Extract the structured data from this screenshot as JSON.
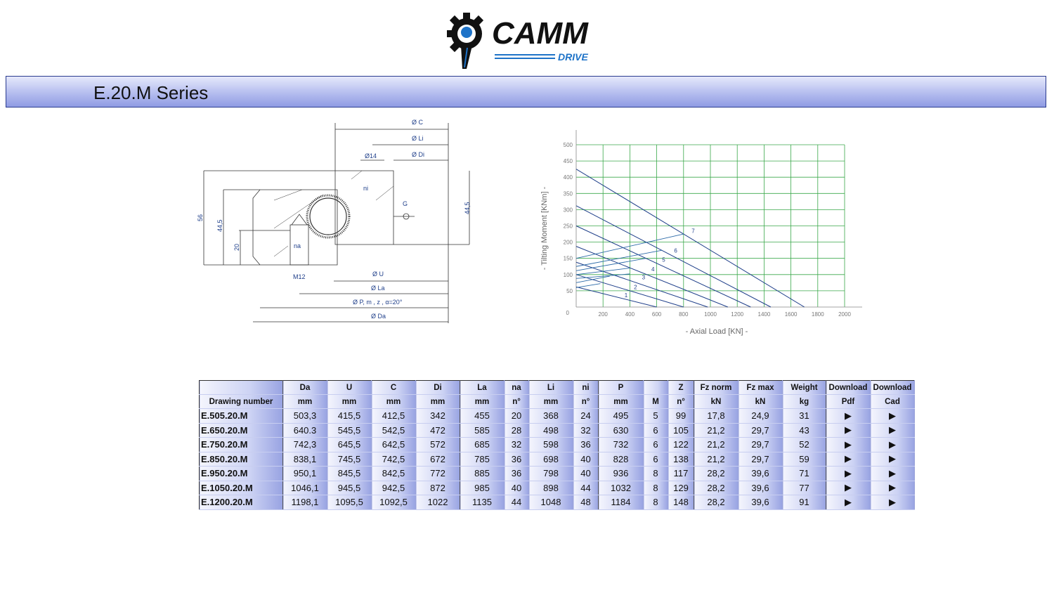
{
  "logo": {
    "text": "CAMM",
    "subtext": "DRIVE",
    "colors": {
      "dark": "#111111",
      "blue": "#1e73c8"
    }
  },
  "title": "E.20.M Series",
  "drawing": {
    "labels": {
      "C": "Ø C",
      "Li": "Ø Li",
      "Di": "Ø Di",
      "hole": "Ø14",
      "ni": "ni",
      "na": "na",
      "G": "G",
      "h56": "56",
      "h445": "44,5",
      "h20": "20",
      "h445r": "44,5",
      "M12": "M12",
      "U": "Ø U",
      "La": "Ø La",
      "P": "Ø P, m , z , α=20°",
      "Da": "Ø Da"
    }
  },
  "chart_data": {
    "type": "line",
    "xlabel": "-  Axial Load  [KN]  -",
    "ylabel": "-  Tilting Moment  [KNm]  -",
    "xlim": [
      0,
      2000
    ],
    "ylim": [
      0,
      500
    ],
    "xticks": [
      200,
      400,
      600,
      800,
      1000,
      1200,
      1400,
      1600,
      1800,
      2000
    ],
    "yticks": [
      50,
      100,
      150,
      200,
      250,
      300,
      350,
      400,
      450,
      500
    ],
    "origin_label": "0",
    "grid": true,
    "grid_color": "#3aa84a",
    "line_color": "#1f3f8a",
    "series": [
      {
        "name": "1",
        "points": [
          [
            0,
            62
          ],
          [
            600,
            0
          ]
        ],
        "bolt": [
          [
            0,
            60
          ],
          [
            180,
            72
          ]
        ]
      },
      {
        "name": "2",
        "points": [
          [
            0,
            100
          ],
          [
            800,
            0
          ]
        ],
        "bolt": [
          [
            0,
            75
          ],
          [
            250,
            95
          ]
        ]
      },
      {
        "name": "3",
        "points": [
          [
            0,
            138
          ],
          [
            980,
            0
          ]
        ],
        "bolt": [
          [
            0,
            88
          ],
          [
            400,
            102
          ]
        ]
      },
      {
        "name": "4",
        "points": [
          [
            0,
            187
          ],
          [
            1130,
            0
          ]
        ],
        "bolt": [
          [
            0,
            100
          ],
          [
            400,
            120
          ]
        ]
      },
      {
        "name": "5",
        "points": [
          [
            0,
            250
          ],
          [
            1300,
            0
          ]
        ],
        "bolt": [
          [
            0,
            112
          ],
          [
            520,
            150
          ]
        ]
      },
      {
        "name": "6",
        "points": [
          [
            0,
            312
          ],
          [
            1450,
            0
          ]
        ],
        "bolt": [
          [
            0,
            125
          ],
          [
            640,
            175
          ]
        ]
      },
      {
        "name": "7",
        "points": [
          [
            0,
            425
          ],
          [
            1700,
            0
          ]
        ],
        "bolt": [
          [
            0,
            150
          ],
          [
            800,
            225
          ]
        ]
      }
    ],
    "series_label_positions_data": [
      [
        360,
        30
      ],
      [
        430,
        55
      ],
      [
        490,
        85
      ],
      [
        560,
        110
      ],
      [
        640,
        140
      ],
      [
        730,
        168
      ],
      [
        860,
        228
      ]
    ]
  },
  "table": {
    "header1": [
      "",
      "Da",
      "U",
      "C",
      "Di",
      "La",
      "na",
      "Li",
      "ni",
      "P",
      "",
      "Z",
      "Fz norm",
      "Fz max",
      "Weight",
      "Download",
      "Download"
    ],
    "header2": [
      "Drawing number",
      "mm",
      "mm",
      "mm",
      "mm",
      "mm",
      "n°",
      "mm",
      "n°",
      "mm",
      "M",
      "n°",
      "kN",
      "kN",
      "kg",
      "Pdf",
      "Cad"
    ],
    "rows": [
      [
        "E.505.20.M",
        "503,3",
        "415,5",
        "412,5",
        "342",
        "455",
        "20",
        "368",
        "24",
        "495",
        "5",
        "99",
        "17,8",
        "24,9",
        "31",
        "▶",
        "▶"
      ],
      [
        "E.650.20.M",
        "640.3",
        "545,5",
        "542,5",
        "472",
        "585",
        "28",
        "498",
        "32",
        "630",
        "6",
        "105",
        "21,2",
        "29,7",
        "43",
        "▶",
        "▶"
      ],
      [
        "E.750.20.M",
        "742,3",
        "645,5",
        "642,5",
        "572",
        "685",
        "32",
        "598",
        "36",
        "732",
        "6",
        "122",
        "21,2",
        "29,7",
        "52",
        "▶",
        "▶"
      ],
      [
        "E.850.20.M",
        "838,1",
        "745,5",
        "742,5",
        "672",
        "785",
        "36",
        "698",
        "40",
        "828",
        "6",
        "138",
        "21,2",
        "29,7",
        "59",
        "▶",
        "▶"
      ],
      [
        "E.950.20.M",
        "950,1",
        "845,5",
        "842,5",
        "772",
        "885",
        "36",
        "798",
        "40",
        "936",
        "8",
        "117",
        "28,2",
        "39,6",
        "71",
        "▶",
        "▶"
      ],
      [
        "E.1050.20.M",
        "1046,1",
        "945,5",
        "942,5",
        "872",
        "985",
        "40",
        "898",
        "44",
        "1032",
        "8",
        "129",
        "28,2",
        "39,6",
        "77",
        "▶",
        "▶"
      ],
      [
        "E.1200.20.M",
        "1198,1",
        "1095,5",
        "1092,5",
        "1022",
        "1135",
        "44",
        "1048",
        "48",
        "1184",
        "8",
        "148",
        "28,2",
        "39,6",
        "91",
        "▶",
        "▶"
      ]
    ]
  }
}
